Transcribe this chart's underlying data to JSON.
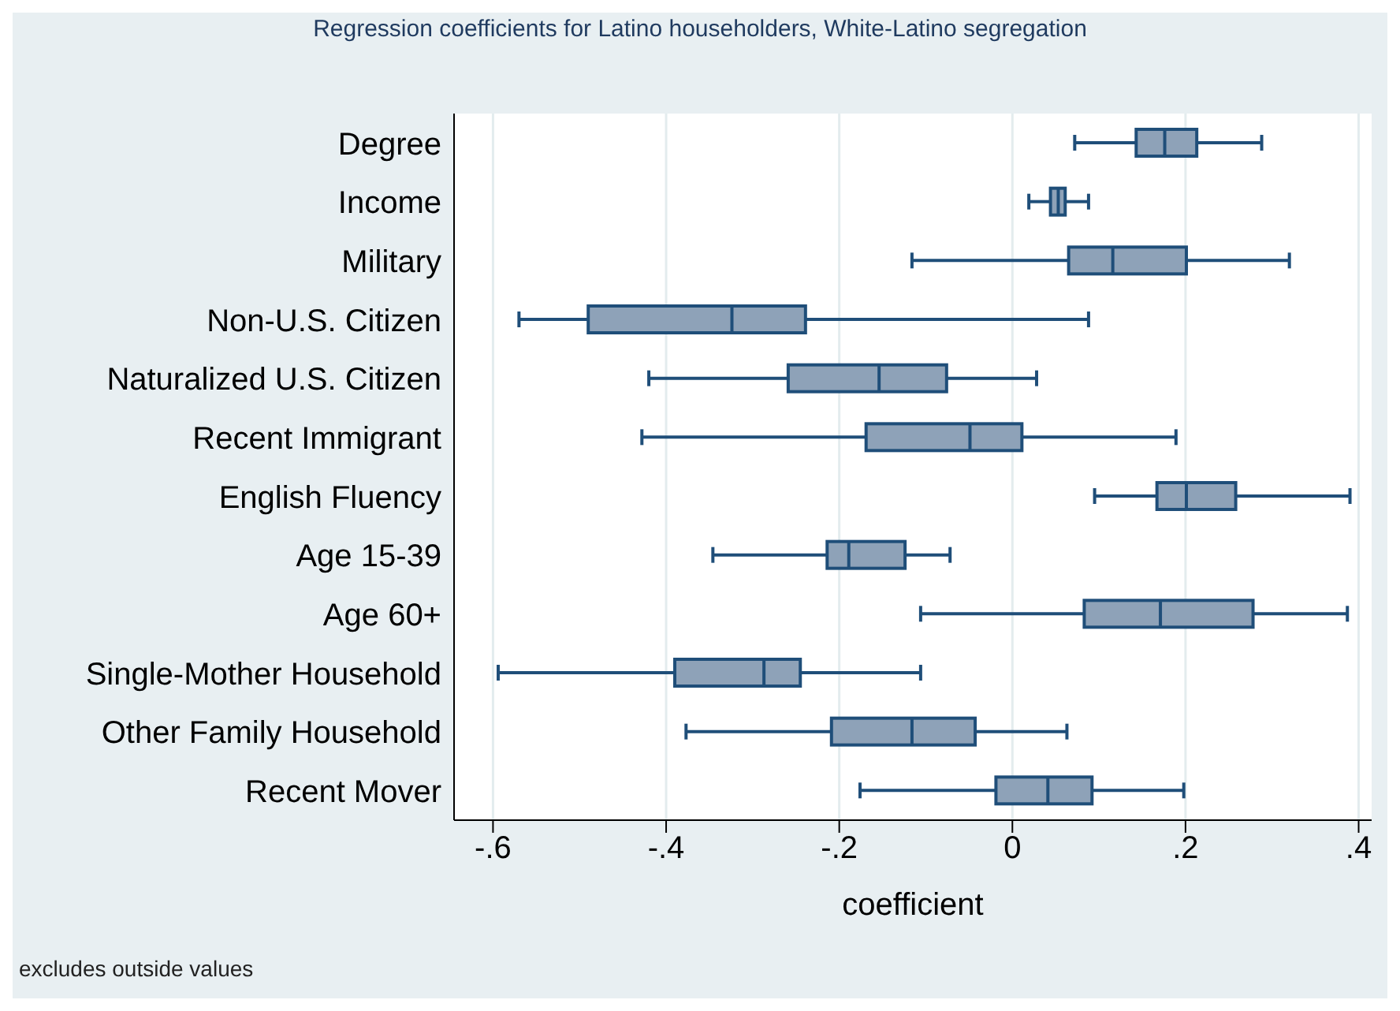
{
  "chart_data": {
    "type": "box",
    "orientation": "horizontal",
    "title": "Regression coefficients for Latino householders, White-Latino segregation",
    "xlabel": "coefficient",
    "annotations": [
      "excludes outside values"
    ],
    "categories": [
      "Degree",
      "Income",
      "Military",
      "Non-U.S. Citizen",
      "Naturalized U.S. Citizen",
      "Recent Immigrant",
      "English Fluency",
      "Age 15-39",
      "Age 60+",
      "Single-Mother Household",
      "Other Family Household",
      "Recent Mover"
    ],
    "boxes": [
      {
        "low": 0.072,
        "q1": 0.143,
        "median": 0.176,
        "q3": 0.213,
        "high": 0.288
      },
      {
        "low": 0.019,
        "q1": 0.044,
        "median": 0.053,
        "q3": 0.061,
        "high": 0.088
      },
      {
        "low": -0.116,
        "q1": 0.065,
        "median": 0.116,
        "q3": 0.201,
        "high": 0.32
      },
      {
        "low": -0.57,
        "q1": -0.49,
        "median": -0.324,
        "q3": -0.239,
        "high": 0.088
      },
      {
        "low": -0.42,
        "q1": -0.259,
        "median": -0.154,
        "q3": -0.076,
        "high": 0.028
      },
      {
        "low": -0.428,
        "q1": -0.169,
        "median": -0.049,
        "q3": 0.011,
        "high": 0.189
      },
      {
        "low": 0.095,
        "q1": 0.167,
        "median": 0.201,
        "q3": 0.258,
        "high": 0.39
      },
      {
        "low": -0.346,
        "q1": -0.214,
        "median": -0.189,
        "q3": -0.124,
        "high": -0.072
      },
      {
        "low": -0.106,
        "q1": 0.083,
        "median": 0.171,
        "q3": 0.278,
        "high": 0.387
      },
      {
        "low": -0.594,
        "q1": -0.39,
        "median": -0.287,
        "q3": -0.245,
        "high": -0.106
      },
      {
        "low": -0.377,
        "q1": -0.209,
        "median": -0.116,
        "q3": -0.043,
        "high": 0.063
      },
      {
        "low": -0.176,
        "q1": -0.019,
        "median": 0.041,
        "q3": 0.092,
        "high": 0.198
      }
    ],
    "color": "#8ea2b8",
    "xlim": [
      -0.645,
      0.415
    ],
    "xticks": [
      {
        "value": -0.6,
        "label": "-.6"
      },
      {
        "value": -0.4,
        "label": "-.4"
      },
      {
        "value": -0.2,
        "label": "-.2"
      },
      0,
      {
        "value": 0.2,
        "label": ".2"
      },
      {
        "value": 0.4,
        "label": ".4"
      }
    ],
    "grid": "x"
  }
}
